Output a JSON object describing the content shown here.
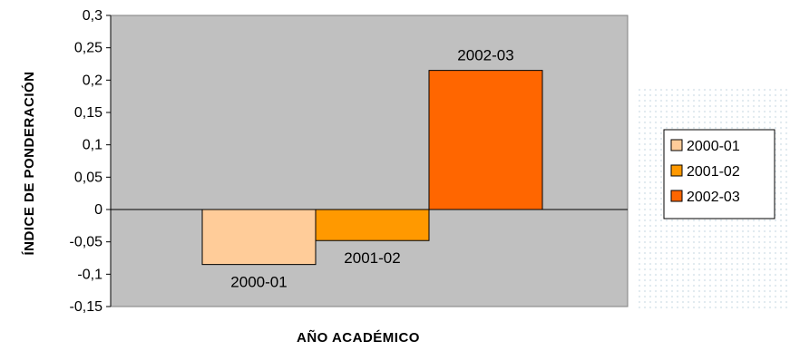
{
  "chart_data": {
    "type": "bar",
    "categories": [
      "2000-01",
      "2001-02",
      "2002-03"
    ],
    "values": [
      -0.085,
      -0.048,
      0.215
    ],
    "ylim": [
      -0.15,
      0.3
    ],
    "yticks": [
      0.3,
      0.25,
      0.2,
      0.15,
      0.1,
      0.05,
      0,
      -0.05,
      -0.1,
      -0.15
    ],
    "ytick_labels": [
      "0,3",
      "0,25",
      "0,2",
      "0,15",
      "0,1",
      "0,05",
      "0",
      "-0,05",
      "-0,1",
      "-0,15"
    ],
    "xlabel": "AÑO ACADÉMICO",
    "ylabel": "ÍNDICE DE PONDERACIÓN",
    "data_labels": [
      "2000-01",
      "2001-02",
      "2002-03"
    ],
    "legend": {
      "placement": "right",
      "entries": [
        "2000-01",
        "2001-02",
        "2002-03"
      ]
    },
    "colors": [
      "#FFCC99",
      "#FF9900",
      "#FF6600"
    ],
    "plot_background": "#C0C0C0",
    "grid": false
  }
}
